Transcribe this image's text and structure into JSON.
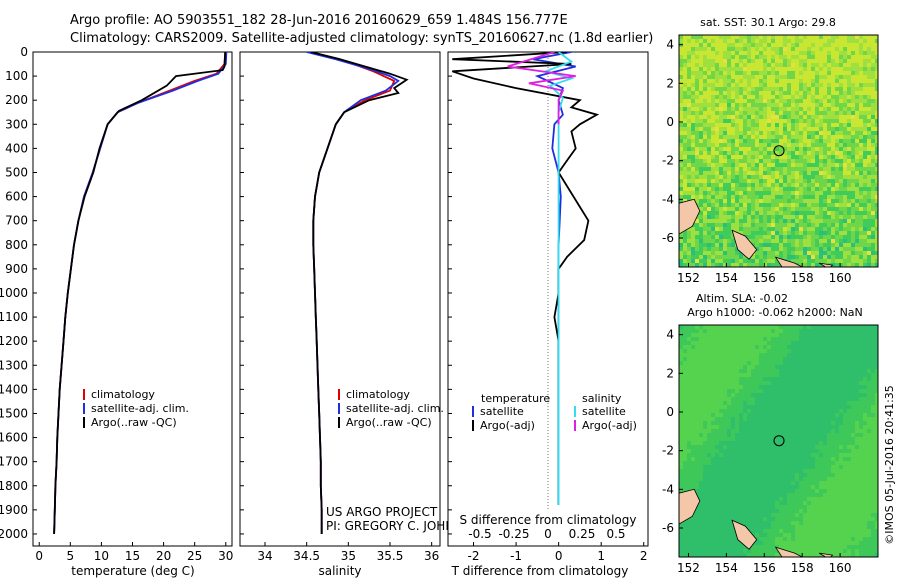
{
  "header": {
    "title_line1": "Argo profile: AO 5903551_182 28-Jun-2016 20160629_659 1.484S 156.777E",
    "title_line2": "Climatology: CARS2009. Satellite-adjusted climatology: synTS_20160627.nc (1.8d earlier)"
  },
  "credits": {
    "project": "US ARGO PROJECT",
    "pi": "PI: GREGORY C. JOHNSON",
    "imos": "©IMOS 05-Jul-2016 20:41:35"
  },
  "colors": {
    "climatology": "#e00000",
    "satellite": "#1f2fe0",
    "argo": "#000000",
    "sat_salinity": "#33ddee",
    "argo_salinity": "#e020e0"
  },
  "depth_ticks": [
    0,
    100,
    200,
    300,
    400,
    500,
    600,
    700,
    800,
    900,
    1000,
    1100,
    1200,
    1300,
    1400,
    1500,
    1600,
    1700,
    1800,
    1900,
    2000
  ],
  "chart_data": [
    {
      "type": "line",
      "name": "temperature-profile",
      "xlabel": "temperature (deg C)",
      "ylabel": "depth",
      "xlim": [
        -1,
        31
      ],
      "ylim": [
        2050,
        0
      ],
      "xticks": [
        0,
        5,
        10,
        15,
        20,
        25,
        30
      ],
      "legend": [
        "climatology",
        "satellite-adj. clim.",
        "Argo(..raw -QC)"
      ],
      "series": [
        {
          "name": "climatology",
          "color": "#e00000",
          "points": [
            [
              29.9,
              0
            ],
            [
              29.8,
              50
            ],
            [
              28.5,
              90
            ],
            [
              25,
              120
            ],
            [
              21,
              160
            ],
            [
              16,
              210
            ],
            [
              12.6,
              250
            ],
            [
              11,
              300
            ],
            [
              9.8,
              400
            ],
            [
              8.6,
              500
            ],
            [
              7.2,
              600
            ],
            [
              6.3,
              700
            ],
            [
              5.6,
              800
            ],
            [
              5.1,
              900
            ],
            [
              4.6,
              1000
            ],
            [
              4.2,
              1100
            ],
            [
              3.9,
              1200
            ],
            [
              3.6,
              1300
            ],
            [
              3.3,
              1400
            ],
            [
              3.1,
              1500
            ],
            [
              2.9,
              1600
            ],
            [
              2.8,
              1700
            ],
            [
              2.6,
              1800
            ],
            [
              2.5,
              1900
            ],
            [
              2.4,
              2000
            ]
          ]
        },
        {
          "name": "satellite-adj. clim.",
          "color": "#1f2fe0",
          "points": [
            [
              30.1,
              0
            ],
            [
              30.0,
              50
            ],
            [
              28.8,
              90
            ],
            [
              25.5,
              120
            ],
            [
              21.5,
              160
            ],
            [
              16,
              210
            ],
            [
              12.6,
              250
            ],
            [
              11,
              300
            ],
            [
              9.8,
              400
            ],
            [
              8.6,
              500
            ],
            [
              7.2,
              600
            ],
            [
              6.3,
              700
            ],
            [
              5.6,
              800
            ],
            [
              5.1,
              900
            ],
            [
              4.6,
              1000
            ],
            [
              4.2,
              1100
            ],
            [
              3.9,
              1200
            ],
            [
              3.6,
              1300
            ],
            [
              3.3,
              1400
            ],
            [
              3.1,
              1500
            ],
            [
              2.9,
              1600
            ],
            [
              2.8,
              1700
            ],
            [
              2.6,
              1800
            ],
            [
              2.5,
              1900
            ],
            [
              2.4,
              2000
            ]
          ]
        },
        {
          "name": "Argo(..raw -QC)",
          "color": "#000000",
          "points": [
            [
              29.9,
              0
            ],
            [
              29.8,
              60
            ],
            [
              29.5,
              75
            ],
            [
              22,
              100
            ],
            [
              20.5,
              140
            ],
            [
              16.5,
              200
            ],
            [
              12.8,
              245
            ],
            [
              11,
              300
            ],
            [
              9.7,
              400
            ],
            [
              8.7,
              500
            ],
            [
              7.3,
              600
            ],
            [
              6.3,
              700
            ],
            [
              5.6,
              800
            ],
            [
              5.1,
              900
            ],
            [
              4.6,
              1000
            ],
            [
              4.2,
              1100
            ],
            [
              3.9,
              1200
            ],
            [
              3.6,
              1300
            ],
            [
              3.3,
              1400
            ],
            [
              3.1,
              1500
            ],
            [
              2.9,
              1600
            ],
            [
              2.8,
              1700
            ],
            [
              2.6,
              1800
            ],
            [
              2.5,
              1900
            ],
            [
              2.4,
              2000
            ]
          ]
        }
      ]
    },
    {
      "type": "line",
      "name": "salinity-profile",
      "xlabel": "salinity",
      "xlim": [
        33.7,
        36.1
      ],
      "ylim": [
        2050,
        0
      ],
      "xticks": [
        34,
        34.5,
        35,
        35.5,
        36
      ],
      "legend": [
        "climatology",
        "satellite-adj. clim.",
        "Argo(..raw -QC)"
      ],
      "series": [
        {
          "name": "climatology",
          "color": "#e00000",
          "points": [
            [
              34.55,
              0
            ],
            [
              34.9,
              30
            ],
            [
              35.3,
              80
            ],
            [
              35.55,
              120
            ],
            [
              35.5,
              160
            ],
            [
              35.2,
              200
            ],
            [
              34.95,
              250
            ],
            [
              34.85,
              300
            ],
            [
              34.75,
              400
            ],
            [
              34.65,
              500
            ],
            [
              34.6,
              600
            ],
            [
              34.58,
              700
            ],
            [
              34.58,
              800
            ],
            [
              34.59,
              900
            ],
            [
              34.6,
              1000
            ],
            [
              34.61,
              1100
            ],
            [
              34.62,
              1200
            ],
            [
              34.63,
              1300
            ],
            [
              34.64,
              1400
            ],
            [
              34.65,
              1500
            ],
            [
              34.66,
              1600
            ],
            [
              34.67,
              1700
            ],
            [
              34.67,
              1800
            ],
            [
              34.68,
              1900
            ],
            [
              34.68,
              2000
            ]
          ]
        },
        {
          "name": "satellite-adj. clim.",
          "color": "#1f2fe0",
          "points": [
            [
              34.5,
              0
            ],
            [
              34.85,
              30
            ],
            [
              35.25,
              70
            ],
            [
              35.5,
              100
            ],
            [
              35.6,
              120
            ],
            [
              35.45,
              160
            ],
            [
              35.15,
              200
            ],
            [
              34.95,
              250
            ],
            [
              34.85,
              300
            ],
            [
              34.75,
              400
            ],
            [
              34.65,
              500
            ],
            [
              34.6,
              600
            ],
            [
              34.58,
              700
            ],
            [
              34.58,
              800
            ],
            [
              34.59,
              900
            ],
            [
              34.6,
              1000
            ],
            [
              34.61,
              1100
            ],
            [
              34.62,
              1200
            ],
            [
              34.63,
              1300
            ],
            [
              34.64,
              1400
            ],
            [
              34.65,
              1500
            ],
            [
              34.66,
              1600
            ],
            [
              34.67,
              1700
            ],
            [
              34.67,
              1800
            ],
            [
              34.68,
              1900
            ],
            [
              34.68,
              2000
            ]
          ]
        },
        {
          "name": "Argo(..raw -QC)",
          "color": "#000000",
          "points": [
            [
              34.55,
              0
            ],
            [
              34.9,
              30
            ],
            [
              35.2,
              60
            ],
            [
              35.5,
              90
            ],
            [
              35.7,
              115
            ],
            [
              35.55,
              150
            ],
            [
              35.6,
              170
            ],
            [
              35.25,
              200
            ],
            [
              34.95,
              250
            ],
            [
              34.85,
              300
            ],
            [
              34.75,
              400
            ],
            [
              34.65,
              500
            ],
            [
              34.6,
              600
            ],
            [
              34.58,
              700
            ],
            [
              34.58,
              800
            ],
            [
              34.59,
              900
            ],
            [
              34.6,
              1000
            ],
            [
              34.61,
              1100
            ],
            [
              34.62,
              1200
            ],
            [
              34.63,
              1300
            ],
            [
              34.64,
              1400
            ],
            [
              34.65,
              1500
            ],
            [
              34.66,
              1600
            ],
            [
              34.67,
              1700
            ],
            [
              34.67,
              1800
            ],
            [
              34.68,
              1900
            ],
            [
              34.68,
              2000
            ]
          ]
        }
      ]
    },
    {
      "type": "line",
      "name": "difference-profile",
      "xlabel": "T difference from climatology",
      "xlabel_top": "S difference from climatology",
      "xlim": [
        -2.6,
        2.1
      ],
      "ylim": [
        2050,
        0
      ],
      "xticks": [
        -2,
        -1,
        0,
        1,
        2
      ],
      "xticks_top": [
        -0.5,
        -0.25,
        0,
        0.25,
        0.5
      ],
      "legend_temperature_heading": "temperature",
      "legend_salinity_heading": "salinity",
      "legend": [
        "satellite",
        "Argo(-adj)",
        "satellite",
        "Argo(-adj)"
      ],
      "series": [
        {
          "name": "temperature satellite",
          "color": "#1f2fe0",
          "points": [
            [
              0.3,
              0
            ],
            [
              -0.6,
              30
            ],
            [
              0.4,
              60
            ],
            [
              -0.5,
              100
            ],
            [
              0.1,
              150
            ],
            [
              0,
              200
            ],
            [
              0.1,
              260
            ],
            [
              -0.1,
              300
            ],
            [
              -0.15,
              400
            ],
            [
              0,
              500
            ],
            [
              0.05,
              600
            ],
            [
              0,
              800
            ],
            [
              0,
              1000
            ],
            [
              0,
              1200
            ],
            [
              0,
              1400
            ],
            [
              0,
              1600
            ],
            [
              0,
              1800
            ],
            [
              0,
              1880
            ]
          ]
        },
        {
          "name": "temperature Argo(-adj)",
          "color": "#000000",
          "points": [
            [
              0.2,
              0
            ],
            [
              -2.5,
              30
            ],
            [
              0.3,
              50
            ],
            [
              -2.5,
              80
            ],
            [
              -2.0,
              110
            ],
            [
              -1.0,
              150
            ],
            [
              0.5,
              200
            ],
            [
              0.3,
              230
            ],
            [
              0.9,
              260
            ],
            [
              0.5,
              300
            ],
            [
              0.3,
              330
            ],
            [
              0.4,
              400
            ],
            [
              0.2,
              450
            ],
            [
              0,
              500
            ],
            [
              0.7,
              700
            ],
            [
              0.6,
              780
            ],
            [
              0.2,
              850
            ],
            [
              0,
              900
            ],
            [
              0,
              1000
            ],
            [
              -0.1,
              1100
            ],
            [
              0,
              1200
            ],
            [
              0,
              1400
            ],
            [
              0,
              1600
            ],
            [
              0,
              1800
            ],
            [
              0,
              1880
            ]
          ]
        },
        {
          "name": "salinity satellite",
          "color": "#33ddee",
          "points": [
            [
              0,
              0
            ],
            [
              0.3,
              40
            ],
            [
              -0.3,
              80
            ],
            [
              0.3,
              110
            ],
            [
              -0.2,
              140
            ],
            [
              0.1,
              190
            ],
            [
              0,
              250
            ],
            [
              0,
              300
            ],
            [
              0,
              500
            ],
            [
              0,
              800
            ],
            [
              0,
              1000
            ],
            [
              0,
              1200
            ],
            [
              0,
              1400
            ],
            [
              0,
              1600
            ],
            [
              0,
              1800
            ],
            [
              0,
              1880
            ]
          ]
        },
        {
          "name": "salinity Argo(-adj)",
          "color": "#e020e0",
          "points": [
            [
              -0.1,
              0
            ],
            [
              -1.2,
              60
            ],
            [
              0.4,
              100
            ],
            [
              -0.7,
              130
            ],
            [
              0.1,
              160
            ],
            [
              0,
              200
            ],
            [
              0,
              250
            ],
            [
              0,
              300
            ]
          ]
        }
      ]
    },
    {
      "type": "heatmap",
      "name": "sst-map",
      "title": "sat. SST: 30.1 Argo: 29.8",
      "xticks": [
        152,
        154,
        156,
        158,
        160
      ],
      "yticks": [
        4,
        2,
        0,
        -2,
        -4,
        -6
      ],
      "xlim": [
        151.5,
        162
      ],
      "ylim": [
        -7.5,
        4.5
      ],
      "marker": [
        156.777,
        -1.484
      ]
    },
    {
      "type": "heatmap",
      "name": "sla-map",
      "title_line1": "Altim. SLA: -0.02",
      "title_line2": "Argo h1000: -0.062 h2000: NaN",
      "xticks": [
        152,
        154,
        156,
        158,
        160
      ],
      "yticks": [
        4,
        2,
        0,
        -2,
        -4,
        -6
      ],
      "xlim": [
        151.5,
        162
      ],
      "ylim": [
        -7.5,
        4.5
      ],
      "marker": [
        156.777,
        -1.484
      ]
    }
  ]
}
